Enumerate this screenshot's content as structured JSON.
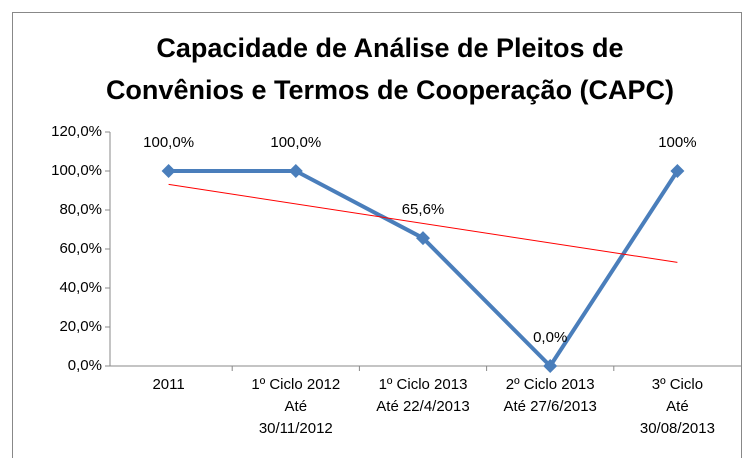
{
  "chart_data": {
    "type": "line",
    "title": "Capacidade de Análise de Pleitos de\nConvênios e Termos de Cooperação (CAPC)",
    "categories": [
      "2011",
      "1º Ciclo 2012\nAté\n30/11/2012",
      "1º  Ciclo 2013\nAté 22/4/2013",
      "2º Ciclo 2013\nAté 27/6/2013",
      "3º Ciclo\nAté\n30/08/2013"
    ],
    "series": [
      {
        "name": "CAPC",
        "color": "#4a7ebb",
        "values": [
          100,
          100,
          65.6,
          0,
          100
        ],
        "value_labels": [
          "100,0%",
          "100,0%",
          "65,6%",
          "0,0%",
          "100%"
        ]
      }
    ],
    "trendline": {
      "type": "linear",
      "color": "#ff0000"
    },
    "ylim": [
      0,
      120
    ],
    "yticks": [
      {
        "value": 0,
        "label": "0,0%"
      },
      {
        "value": 20,
        "label": "20,0%"
      },
      {
        "value": 40,
        "label": "40,0%"
      },
      {
        "value": 60,
        "label": "60,0%"
      },
      {
        "value": 80,
        "label": "80,0%"
      },
      {
        "value": 100,
        "label": "100,0%"
      },
      {
        "value": 120,
        "label": "120,0%"
      }
    ],
    "grid": false,
    "legend": false
  }
}
